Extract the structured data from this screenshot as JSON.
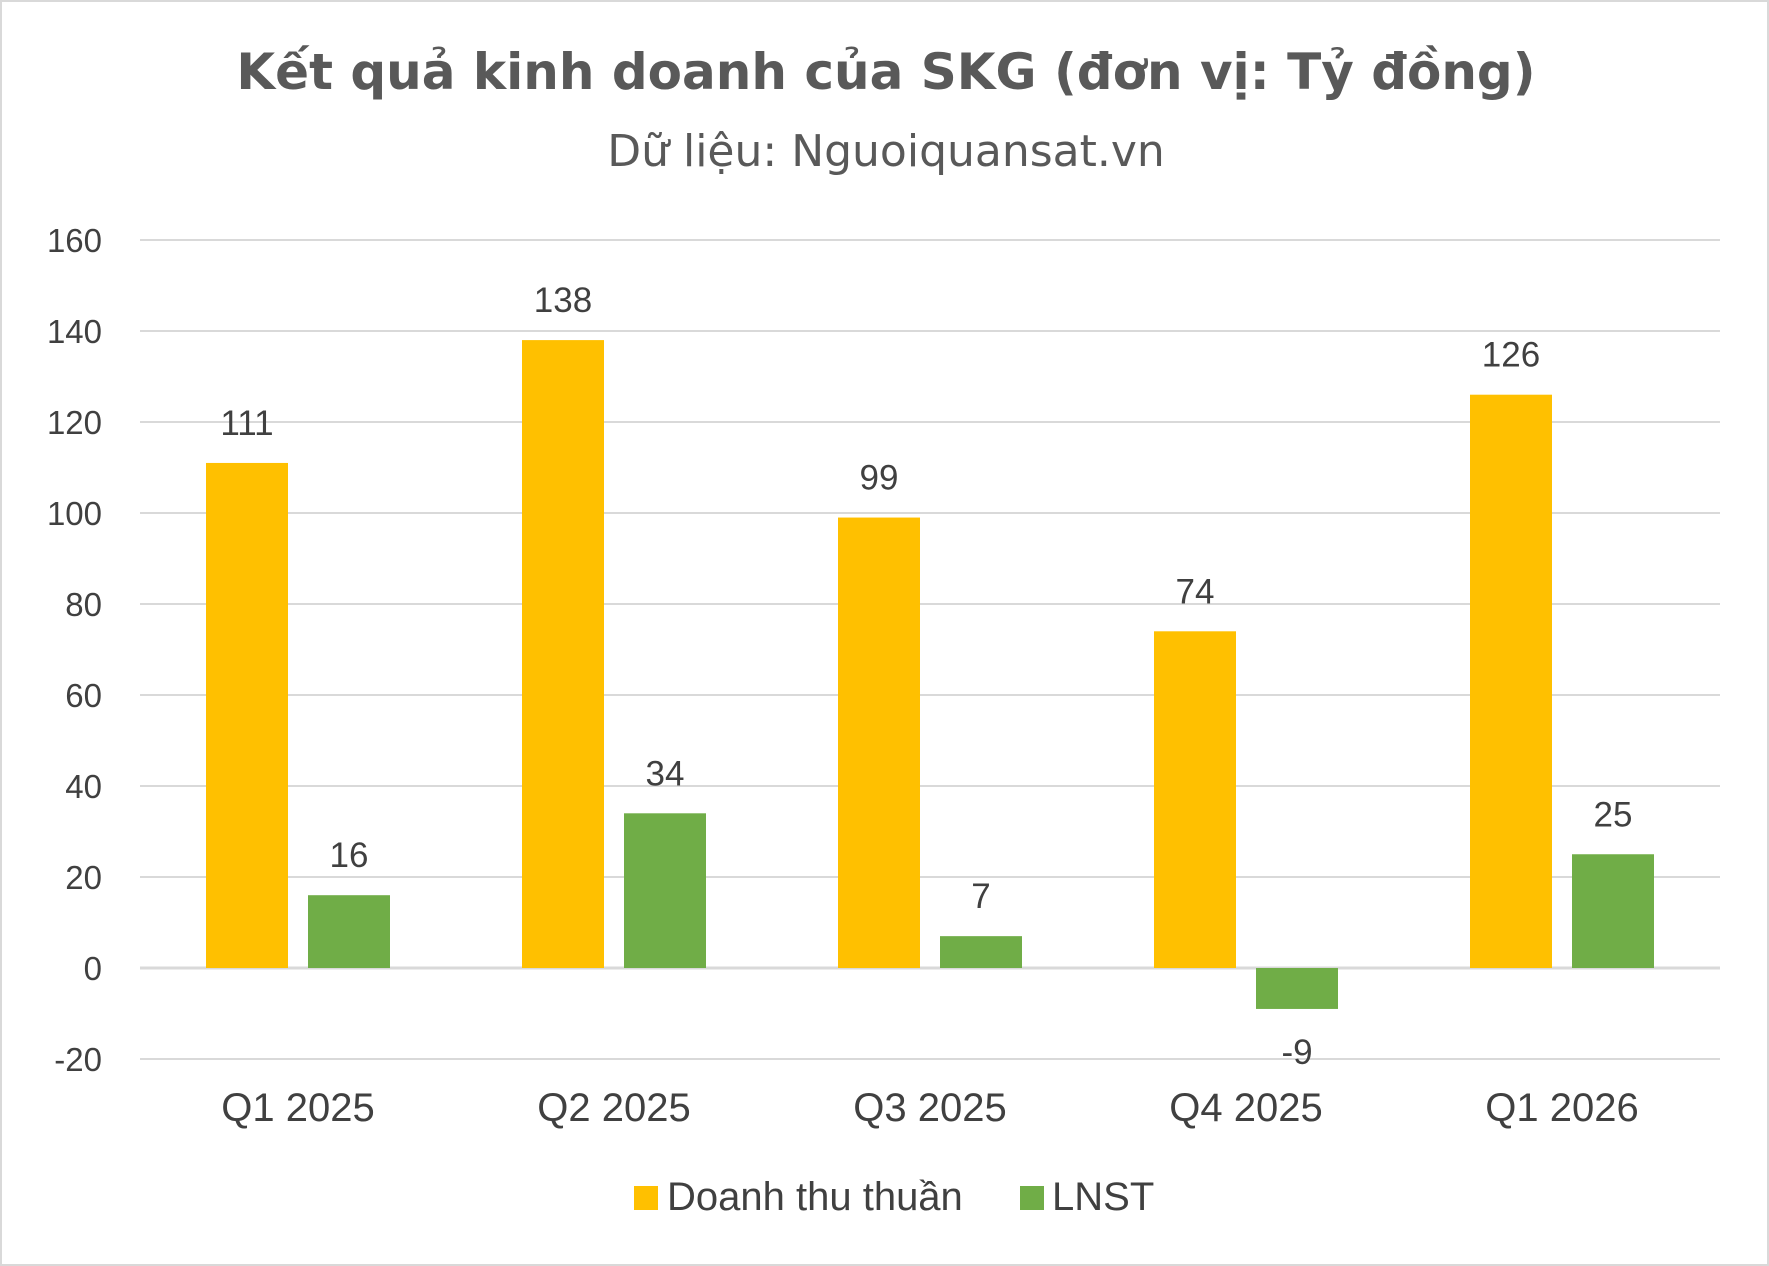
{
  "chart_data": {
    "type": "bar",
    "title": "Kết quả kinh doanh của SKG (đơn vị: Tỷ đồng)",
    "subtitle": "Dữ liệu: Nguoiquansat.vn",
    "categories": [
      "Q1 2025",
      "Q2 2025",
      "Q3 2025",
      "Q4 2025",
      "Q1 2026"
    ],
    "series": [
      {
        "name": "Doanh thu thuần",
        "color": "#FFC000",
        "values": [
          111,
          138,
          99,
          74,
          126
        ]
      },
      {
        "name": "LNST",
        "color": "#70AD47",
        "values": [
          16,
          34,
          7,
          -9,
          25
        ]
      }
    ],
    "ylim": [
      -20,
      160
    ],
    "yticks": [
      160,
      140,
      120,
      100,
      80,
      60,
      40,
      20,
      0,
      -20
    ],
    "xlabel": "",
    "ylabel": "",
    "grid": true,
    "legend_position": "bottom",
    "data_labels": true
  }
}
